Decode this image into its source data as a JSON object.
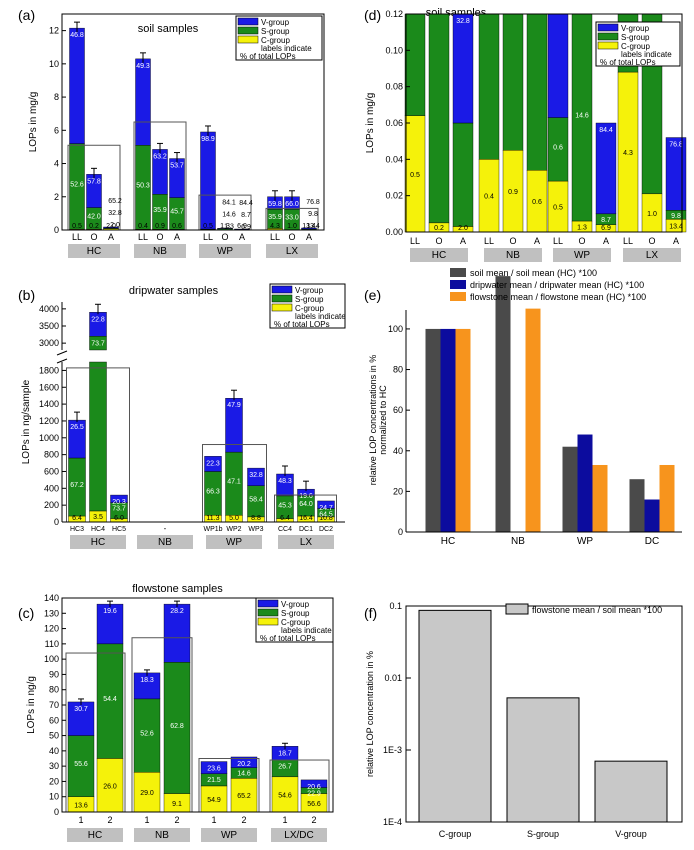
{
  "colors": {
    "V": "#1a1ae6",
    "S": "#1b8a1b",
    "C": "#f5f20a",
    "soil": "#4a4a4a",
    "drip": "#0c0c9e",
    "flow": "#f7941d",
    "grey": "#c8c8c8",
    "boxfill": "#c0c0c0"
  },
  "chart_data": [
    {
      "panel_label": "(a)",
      "type": "stacked-bar",
      "title": "soil samples",
      "ylabel": "LOPs in mg/g",
      "ylim": [
        0,
        13
      ],
      "yticks": [
        "0",
        "2",
        "4",
        "6",
        "8",
        "10",
        "12"
      ],
      "legend": {
        "items": [
          "V-group",
          "S-group",
          "C-group"
        ],
        "note1": "labels indicate",
        "note2": "% of total LOPs",
        "position": "top-right"
      },
      "groups": [
        "HC",
        "NB",
        "WP",
        "LX"
      ],
      "bars": [
        {
          "group": "HC",
          "x": "LL",
          "C": 0.05,
          "S": 5.2,
          "V": 12.15,
          "labels": {
            "C": "0.5",
            "S": "52.6",
            "V": 46.8
          }
        },
        {
          "group": "HC",
          "x": "O",
          "C": 0.05,
          "S": 1.35,
          "V": 3.35,
          "labels": {
            "C": "0.2",
            "S": "42.0",
            "V": "57.8"
          }
        },
        {
          "group": "HC",
          "x": "A",
          "C": 0.08,
          "S": 0.12,
          "V": 0.18,
          "labels": {
            "C": "2.0",
            "S": "32.8",
            "V": "65.2"
          }
        },
        {
          "group": "NB",
          "x": "LL",
          "C": 0.04,
          "S": 5.1,
          "V": 10.3,
          "labels": {
            "C": "0.4",
            "S": "50.3",
            "V": "49.3"
          }
        },
        {
          "group": "NB",
          "x": "O",
          "C": 0.04,
          "S": 2.15,
          "V": 4.85,
          "labels": {
            "C": "0.9",
            "S": "35.9",
            "V": "63.2"
          }
        },
        {
          "group": "NB",
          "x": "A",
          "C": 0.03,
          "S": 1.95,
          "V": 4.3,
          "labels": {
            "C": "0.6",
            "S": "45.7",
            "V": "53.7"
          }
        },
        {
          "group": "WP",
          "x": "LL",
          "C": 0.03,
          "S": 0.06,
          "V": 5.9,
          "labels": {
            "C": "0.5",
            "S": "0.6",
            "V": "98.9"
          }
        },
        {
          "group": "WP",
          "x": "O",
          "C": 0.01,
          "S": 0.07,
          "V": 0.1,
          "labels": {
            "C": "1.3",
            "S": "14.6",
            "V": "84.1"
          }
        },
        {
          "group": "WP",
          "x": "A",
          "C": 0.01,
          "S": 0.03,
          "V": 0.06,
          "labels": {
            "C": "6.9",
            "S": "8.7",
            "V": "84.4"
          }
        },
        {
          "group": "LX",
          "x": "LL",
          "C": 0.09,
          "S": 1.25,
          "V": 2.0,
          "labels": {
            "C": "4.3",
            "S": "35.9",
            "V": "59.8"
          }
        },
        {
          "group": "LX",
          "x": "O",
          "C": 0.02,
          "S": 1.25,
          "V": 2.0,
          "labels": {
            "C": "1.0",
            "S": "33.0",
            "V": "66.0"
          }
        },
        {
          "group": "LX",
          "x": "A",
          "C": 0.02,
          "S": 0.06,
          "V": 0.12,
          "labels": {
            "C": "13.4",
            "S": "9.8",
            "V": "76.8"
          }
        }
      ],
      "errorbars_top": [
        12.15,
        3.35,
        null,
        10.3,
        4.85,
        4.3,
        5.9,
        null,
        null,
        2.0,
        2.0,
        null
      ],
      "outline_boxes": [
        {
          "group": "HC",
          "top": 5.1
        },
        {
          "group": "NB",
          "top": 6.5
        },
        {
          "group": "WP",
          "top": 2.1
        },
        {
          "group": "LX",
          "top": 1.3
        }
      ]
    },
    {
      "panel_label": "(d)",
      "type": "stacked-bar",
      "title": "soil samples",
      "ylabel": "LOPs in mg/g",
      "ylim": [
        0,
        0.12
      ],
      "yticks": [
        "0.00",
        "0.02",
        "0.04",
        "0.06",
        "0.08",
        "0.10",
        "0.12"
      ],
      "legend": {
        "items": [
          "V-group",
          "S-group",
          "C-group"
        ],
        "note1": "labels indicate",
        "note2": "% of total LOPs",
        "position": "top-right"
      },
      "groups": [
        "HC",
        "NB",
        "WP",
        "LX"
      ],
      "bars": [
        {
          "x": "LL",
          "C": 0.064,
          "S": 0.12,
          "V": 0.12,
          "labels": {
            "C": "0.5"
          }
        },
        {
          "x": "O",
          "C": 0.005,
          "S": 0.12,
          "V": 0.12,
          "labels": {
            "C": "0.2"
          }
        },
        {
          "x": "A",
          "C": 0.003,
          "S": 0.06,
          "V": 0.12,
          "labels": {
            "C": "2.0",
            "V": "32.8"
          }
        },
        {
          "x": "LL",
          "C": 0.04,
          "S": 0.12,
          "V": 0.12,
          "labels": {
            "C": "0.4"
          }
        },
        {
          "x": "O",
          "C": 0.045,
          "S": 0.12,
          "V": 0.12,
          "labels": {
            "C": "0.9"
          }
        },
        {
          "x": "A",
          "C": 0.034,
          "S": 0.12,
          "V": 0.12,
          "labels": {
            "C": "0.6"
          }
        },
        {
          "x": "LL",
          "C": 0.028,
          "S": 0.063,
          "V": 0.12,
          "labels": {
            "C": "0.5",
            "S": "0.6"
          }
        },
        {
          "x": "O",
          "C": 0.006,
          "S": 0.12,
          "V": 0.12,
          "labels": {
            "C": "1.3",
            "S": "14.6"
          }
        },
        {
          "x": "A",
          "C": 0.004,
          "S": 0.01,
          "V": 0.06,
          "labels": {
            "C": "6.9",
            "S": "8.7",
            "V": "84.4"
          }
        },
        {
          "x": "LL",
          "C": 0.088,
          "S": 0.12,
          "V": 0.12,
          "labels": {
            "C": "4.3"
          }
        },
        {
          "x": "O",
          "C": 0.021,
          "S": 0.12,
          "V": 0.12,
          "labels": {
            "C": "1.0"
          }
        },
        {
          "x": "A",
          "C": 0.007,
          "S": 0.012,
          "V": 0.052,
          "labels": {
            "C": "13.4",
            "S": "9.8",
            "V": "76.8"
          }
        }
      ]
    },
    {
      "panel_label": "(b)",
      "type": "stacked-bar",
      "title": "dripwater samples",
      "ylabel": "LOPs in ng/sample",
      "ylim_lower": [
        0,
        1900
      ],
      "ylim_upper": [
        2800,
        4200
      ],
      "yticks_lower": [
        "0",
        "200",
        "400",
        "600",
        "800",
        "1000",
        "1200",
        "1400",
        "1600",
        "1800"
      ],
      "yticks_upper": [
        "3000",
        "3500",
        "4000"
      ],
      "legend": {
        "items": [
          "V-group",
          "S-group",
          "C-group"
        ],
        "note1": "labels indicate",
        "note2": "% of total LOPs",
        "position": "top-right"
      },
      "groups": [
        "HC",
        "NB",
        "WP",
        "LX"
      ],
      "nb_dash": "-",
      "bars": [
        {
          "x": "HC3",
          "C": 70,
          "S": 760,
          "V": 1210,
          "labels": {
            "C": "6.4",
            "S": "67.2",
            "V": "26.5"
          }
        },
        {
          "x": "HC4",
          "C": 130,
          "S": 3200,
          "V": 3900,
          "labels": {
            "C": "3.5",
            "S": "73.7",
            "V": "22.8"
          }
        },
        {
          "x": "HC5",
          "C": 40,
          "S": 230,
          "V": 320,
          "labels": {
            "C": "6.0",
            "S": "73.7",
            "V": "20.3"
          }
        },
        {
          "x": "WP1b",
          "C": 80,
          "S": 600,
          "V": 780,
          "labels": {
            "C": "11.3",
            "S": "66.3",
            "V": "22.3"
          }
        },
        {
          "x": "WP2",
          "C": 80,
          "S": 830,
          "V": 1470,
          "labels": {
            "C": "5.0",
            "S": "47.1",
            "V": "47.9"
          }
        },
        {
          "x": "WP3",
          "C": 60,
          "S": 430,
          "V": 640,
          "labels": {
            "C": "8.8",
            "S": "58.4",
            "V": "32.8"
          }
        },
        {
          "x": "CC4",
          "C": 40,
          "S": 310,
          "V": 570,
          "labels": {
            "C": "6.4",
            "S": "45.3",
            "V": "48.3"
          }
        },
        {
          "x": "DC1",
          "C": 70,
          "S": 310,
          "V": 390,
          "labels": {
            "C": "16.4",
            "S": "64.0",
            "V": "19.6"
          }
        },
        {
          "x": "DC2",
          "C": 60,
          "S": 160,
          "V": 250,
          "labels": {
            "C": "10.8",
            "S": "64.5",
            "V": "24.7"
          }
        }
      ],
      "outline_boxes": [
        {
          "group": "HC",
          "top": 1830
        },
        {
          "group": "WP",
          "top": 920
        },
        {
          "group": "LX",
          "top": 320
        }
      ]
    },
    {
      "panel_label": "(e)",
      "type": "bar",
      "ylabel": "relative LOP concentrations  in %",
      "ylabel2": "normalized to HC",
      "ylim": [
        0,
        130
      ],
      "yticks": [
        "0",
        "20",
        "40",
        "60",
        "80",
        "100",
        "120"
      ],
      "categories": [
        "HC",
        "NB",
        "WP",
        "DC"
      ],
      "series": [
        {
          "name": "soil mean / soil mean (HC) *100",
          "values": [
            100,
            126,
            42,
            26
          ]
        },
        {
          "name": "dripwater mean  / dripwater mean (HC) *100",
          "values": [
            100,
            null,
            48,
            16
          ]
        },
        {
          "name": "flowstone mean / flowstone mean (HC) *100",
          "values": [
            100,
            110,
            33,
            33
          ]
        }
      ],
      "legend_position": "top"
    },
    {
      "panel_label": "(c)",
      "type": "stacked-bar",
      "title": "flowstone samples",
      "ylabel": "LOPs in ng/g",
      "ylim": [
        0,
        140
      ],
      "yticks": [
        "0",
        "10",
        "20",
        "30",
        "40",
        "50",
        "60",
        "70",
        "80",
        "90",
        "100",
        "110",
        "120",
        "130",
        "140"
      ],
      "legend": {
        "items": [
          "V-group",
          "S-group",
          "C-group"
        ],
        "note1": "labels indicate",
        "note2": "% of total LOPs",
        "position": "top-right"
      },
      "groups": [
        "HC",
        "NB",
        "WP",
        "LX/DC"
      ],
      "bars": [
        {
          "x": "1",
          "C": 10,
          "S": 50,
          "V": 72,
          "labels": {
            "C": "13.6",
            "S": "55.6",
            "V": "30.7"
          }
        },
        {
          "x": "2",
          "C": 35,
          "S": 110,
          "V": 136,
          "labels": {
            "C": "26.0",
            "S": "54.4",
            "V": "19.6"
          }
        },
        {
          "x": "1",
          "C": 26,
          "S": 74,
          "V": 91,
          "labels": {
            "C": "29.0",
            "S": "52.6",
            "V": "18.3"
          }
        },
        {
          "x": "2",
          "C": 12,
          "S": 98,
          "V": 136,
          "labels": {
            "C": "9.1",
            "S": "62.8",
            "V": "28.2"
          }
        },
        {
          "x": "1",
          "C": 17,
          "S": 25,
          "V": 33,
          "labels": {
            "C": "54.9",
            "S": "21.5",
            "V": "23.6"
          }
        },
        {
          "x": "2",
          "C": 22,
          "S": 29,
          "V": 36,
          "labels": {
            "C": "65.2",
            "S": "14.6",
            "V": "20.2"
          }
        },
        {
          "x": "1",
          "C": 23,
          "S": 34,
          "V": 43,
          "labels": {
            "C": "54.6",
            "S": "26.7",
            "V": "18.7"
          }
        },
        {
          "x": "2",
          "C": 12,
          "S": 16,
          "V": 21,
          "labels": {
            "C": "56.6",
            "S": "22.9",
            "V": "20.6"
          }
        }
      ],
      "outline_boxes": [
        {
          "group": "HC",
          "top": 104
        },
        {
          "group": "NB",
          "top": 114
        },
        {
          "group": "WP",
          "top": 35
        },
        {
          "group": "LX/DC",
          "top": 34
        }
      ]
    },
    {
      "panel_label": "(f)",
      "type": "bar",
      "log_scale": true,
      "ylabel": "relative LOP concentration in %",
      "ylim": [
        0.0001,
        0.1
      ],
      "yticks": [
        "1E-4",
        "1E-3",
        "0.01",
        "0.1"
      ],
      "categories": [
        "C-group",
        "S-group",
        "V-group"
      ],
      "values": [
        0.087,
        0.0053,
        0.0007
      ],
      "legend": "flowstone mean / soil mean *100"
    }
  ]
}
